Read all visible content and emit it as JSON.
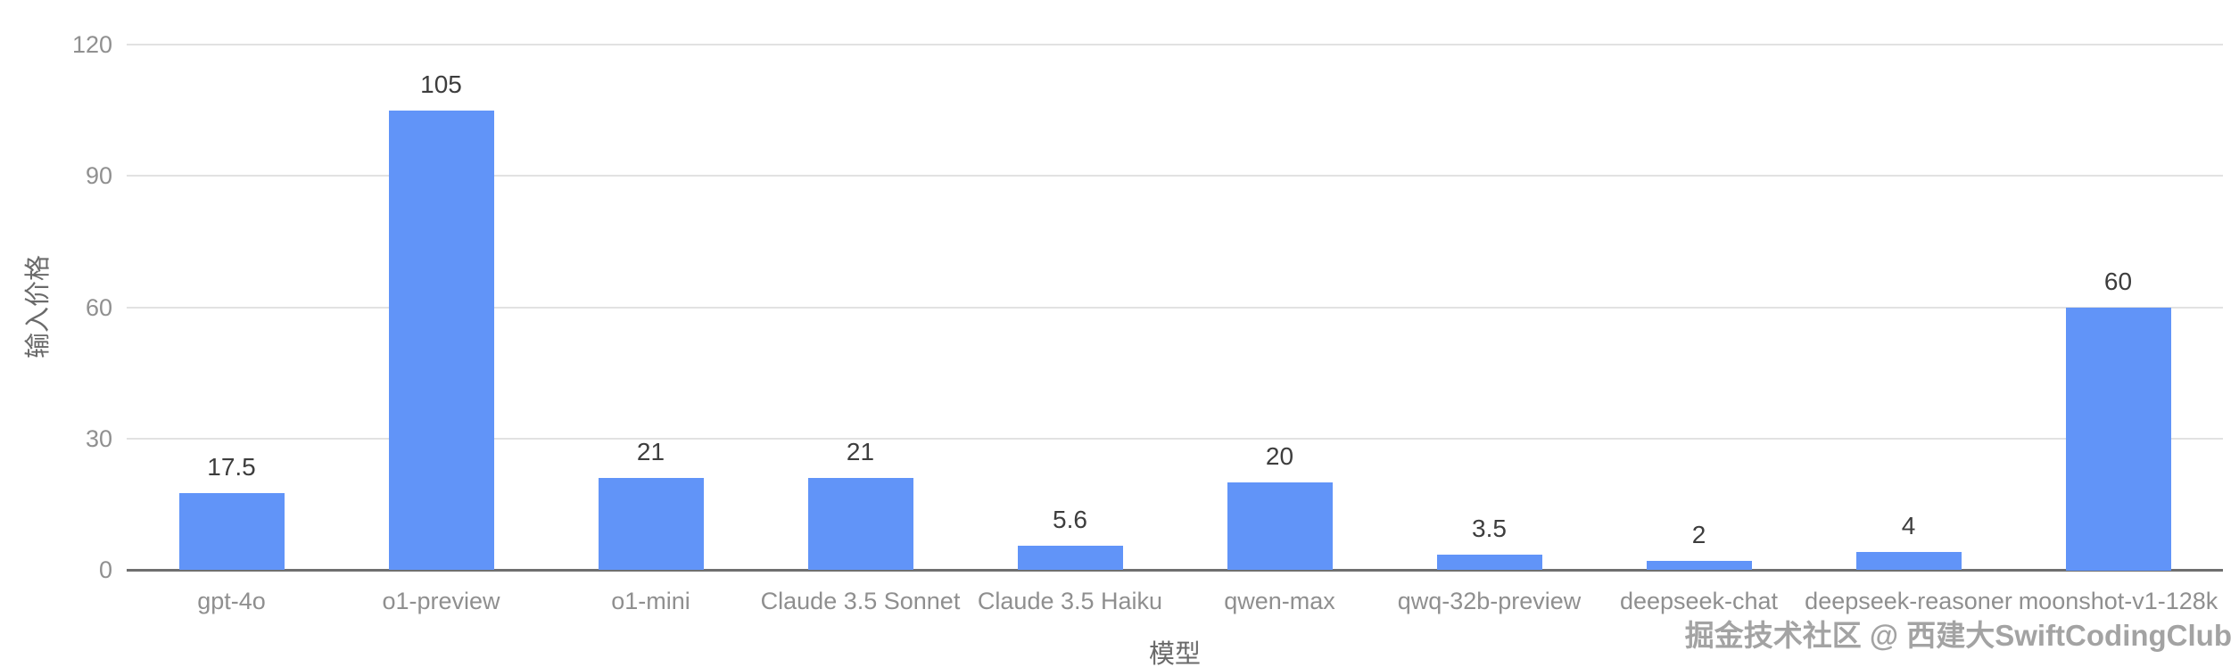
{
  "chart_data": {
    "type": "bar",
    "title": "",
    "categories": [
      "gpt-4o",
      "o1-preview",
      "o1-mini",
      "Claude 3.5 Sonnet",
      "Claude 3.5 Haiku",
      "qwen-max",
      "qwq-32b-preview",
      "deepseek-chat",
      "deepseek-reasoner",
      "moonshot-v1-128k"
    ],
    "values": [
      17.5,
      105,
      21,
      21,
      5.6,
      20,
      3.5,
      2,
      4,
      60
    ],
    "value_labels": [
      "17.5",
      "105",
      "21",
      "21",
      "5.6",
      "20",
      "3.5",
      "2",
      "4",
      "60"
    ],
    "xlabel": "模型",
    "ylabel": "输入价格",
    "ylim": [
      0,
      120
    ],
    "yticks": [
      0,
      30,
      60,
      90,
      120
    ],
    "grid": true,
    "legend": false,
    "bar_color": "#6194f8"
  },
  "watermark": "掘金技术社区 @ 西建大SwiftCodingClub",
  "colors": {
    "bar": "#6194f8",
    "gridline": "#e2e2e2",
    "axis_line": "#6f6f6f",
    "tick_text": "#909090",
    "value_text": "#3d3d3d",
    "axis_title_text": "#6a6a6a",
    "watermark_text": "#a3a3a3",
    "background": "#ffffff"
  }
}
